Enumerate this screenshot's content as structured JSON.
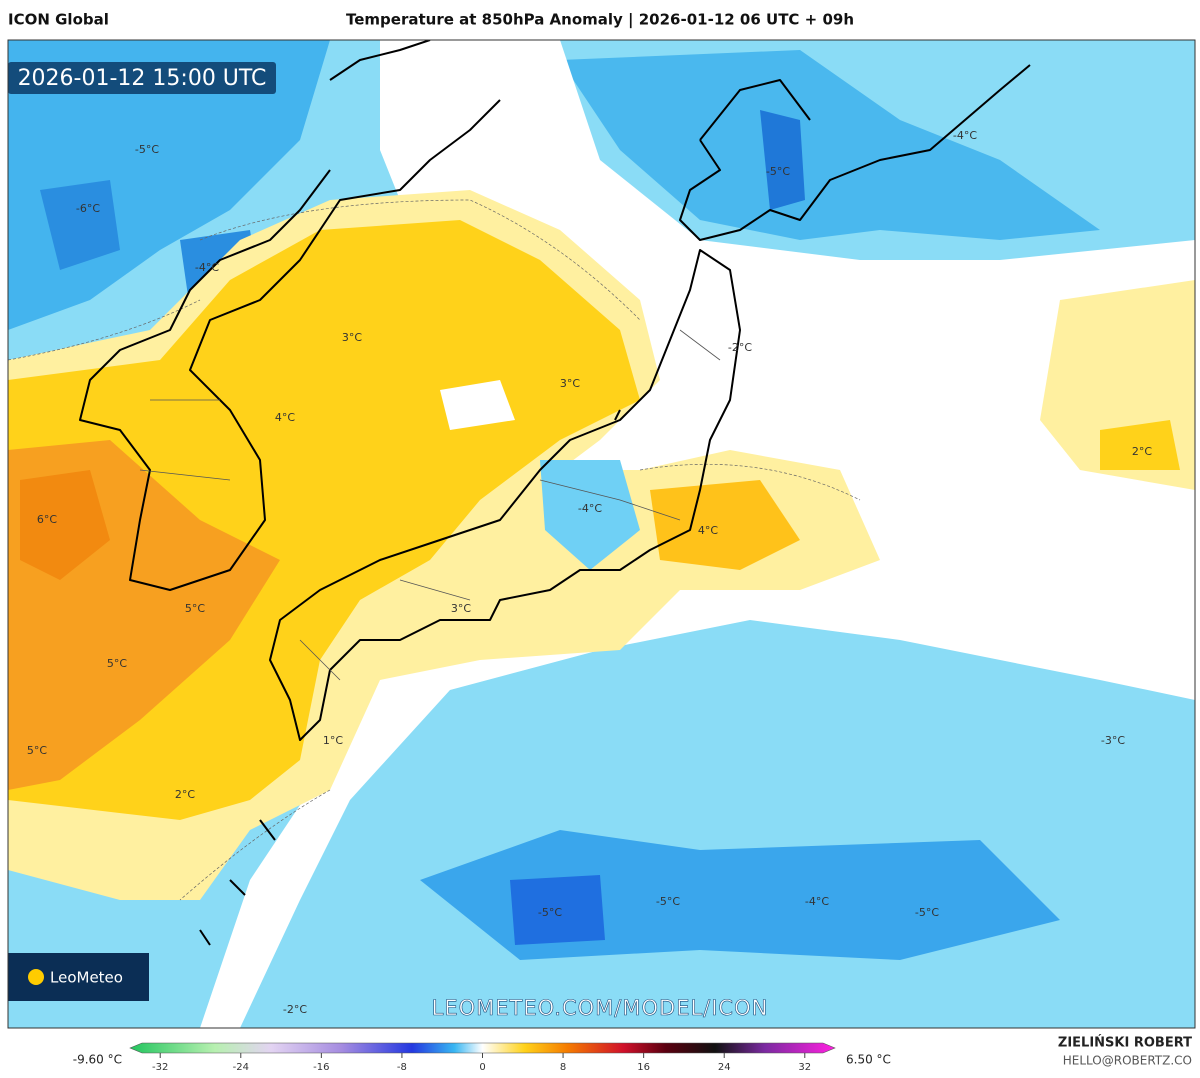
{
  "header": {
    "model": "ICON Global",
    "title": "Temperature at 850hPa Anomaly | 2026-01-12 06 UTC + 09h"
  },
  "timestamp": "2026-01-12 15:00 UTC",
  "contour_labels": [
    "-5°C",
    "-6°C",
    "-4°C",
    "3°C",
    "3°C",
    "4°C",
    "6°C",
    "5°C",
    "5°C",
    "5°C",
    "2°C",
    "1°C",
    "3°C",
    "-4°C",
    "4°C",
    "-2°C",
    "-5°C",
    "-4°C",
    "2°C",
    "-3°C",
    "-5°C",
    "-5°C",
    "-4°C",
    "-5°C",
    "-2°C"
  ],
  "watermark": "LEOMETEO.COM/MODEL/ICON",
  "logo": "LeoMeteo",
  "author": "ZIELIŃSKI ROBERT",
  "email": "HELLO@ROBERTZ.CO",
  "colorbar": {
    "min_label": "-9.60 °C",
    "max_label": "6.50 °C",
    "range": [
      -35,
      35
    ],
    "ticks": [
      -32,
      -24,
      -16,
      -8,
      0,
      8,
      16,
      24,
      32
    ]
  }
}
